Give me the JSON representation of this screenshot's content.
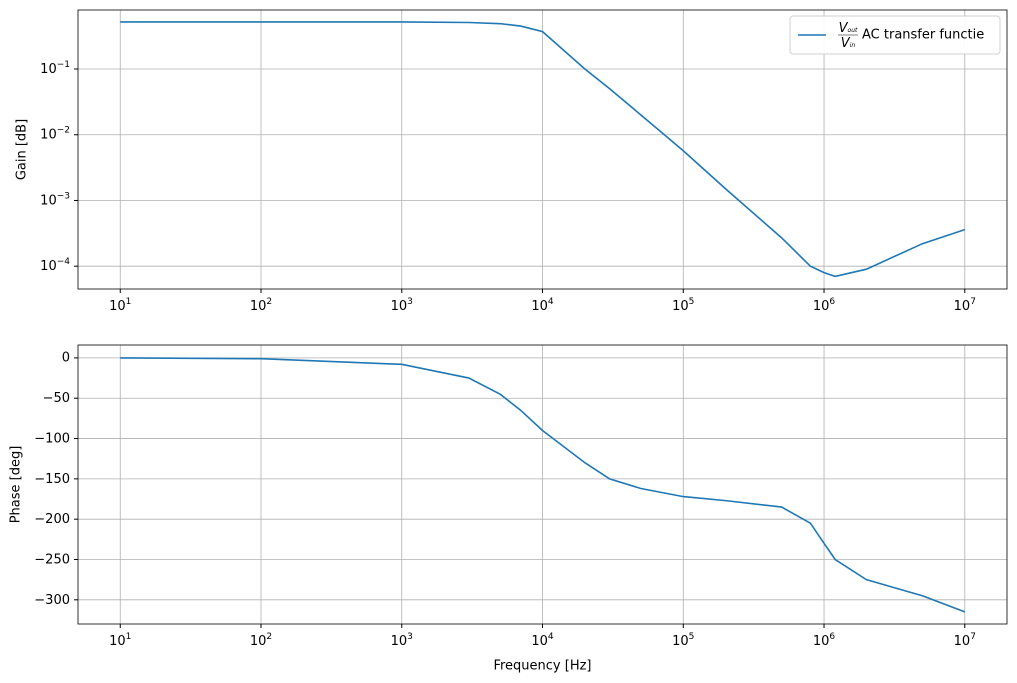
{
  "chart_data": [
    {
      "type": "line",
      "ylabel": "Gain [dB]",
      "xscale": "log",
      "yscale": "log",
      "grid": true,
      "legend": "upper right",
      "x": [
        10,
        100,
        1000,
        3000,
        5000,
        7000,
        10000,
        20000,
        30000,
        50000,
        100000,
        200000,
        500000,
        800000,
        1000000,
        1200000,
        2000000,
        5000000,
        10000000
      ],
      "series": [
        {
          "name": "AC transfer functie",
          "name_math": {
            "numerator": "V",
            "numerator_sub": "out",
            "denominator": "V",
            "denominator_sub": "in"
          },
          "color": "#1f77b4",
          "values": [
            0.52,
            0.52,
            0.52,
            0.51,
            0.49,
            0.45,
            0.37,
            0.1,
            0.05,
            0.02,
            0.0057,
            0.0015,
            0.00027,
            0.0001,
            8e-05,
            7e-05,
            9e-05,
            0.00022,
            0.00036
          ]
        }
      ],
      "xlim": [
        5.01,
        19950000
      ],
      "ylim": [
        4.5e-05,
        0.79
      ],
      "xticks": [
        {
          "value": 10,
          "label": "10",
          "exponent": "1"
        },
        {
          "value": 100,
          "label": "10",
          "exponent": "2"
        },
        {
          "value": 1000,
          "label": "10",
          "exponent": "3"
        },
        {
          "value": 10000,
          "label": "10",
          "exponent": "4"
        },
        {
          "value": 100000,
          "label": "10",
          "exponent": "5"
        },
        {
          "value": 1000000,
          "label": "10",
          "exponent": "6"
        },
        {
          "value": 10000000,
          "label": "10",
          "exponent": "7"
        }
      ],
      "yticks": [
        {
          "value": 0.0001,
          "label": "10",
          "exponent": "−4"
        },
        {
          "value": 0.001,
          "label": "10",
          "exponent": "−3"
        },
        {
          "value": 0.01,
          "label": "10",
          "exponent": "−2"
        },
        {
          "value": 0.1,
          "label": "10",
          "exponent": "−1"
        }
      ]
    },
    {
      "type": "line",
      "ylabel": "Phase [deg]",
      "xlabel": "Frequency [Hz]",
      "xscale": "log",
      "grid": true,
      "x": [
        10,
        100,
        1000,
        3000,
        5000,
        7000,
        10000,
        20000,
        30000,
        50000,
        100000,
        200000,
        500000,
        800000,
        1000000,
        1200000,
        2000000,
        5000000,
        10000000
      ],
      "series": [
        {
          "color": "#1f77b4",
          "values": [
            0,
            -1,
            -8,
            -25,
            -45,
            -65,
            -90,
            -130,
            -150,
            -162,
            -172,
            -177,
            -185,
            -205,
            -230,
            -250,
            -275,
            -295,
            -315
          ]
        }
      ],
      "xlim": [
        5.01,
        19950000
      ],
      "ylim": [
        -330,
        16
      ],
      "xticks": [
        {
          "value": 10,
          "label": "10",
          "exponent": "1"
        },
        {
          "value": 100,
          "label": "10",
          "exponent": "2"
        },
        {
          "value": 1000,
          "label": "10",
          "exponent": "3"
        },
        {
          "value": 10000,
          "label": "10",
          "exponent": "4"
        },
        {
          "value": 100000,
          "label": "10",
          "exponent": "5"
        },
        {
          "value": 1000000,
          "label": "10",
          "exponent": "6"
        },
        {
          "value": 10000000,
          "label": "10",
          "exponent": "7"
        }
      ],
      "yticks": [
        {
          "value": -300,
          "label": "−300"
        },
        {
          "value": -250,
          "label": "−250"
        },
        {
          "value": -200,
          "label": "−200"
        },
        {
          "value": -150,
          "label": "−150"
        },
        {
          "value": -100,
          "label": "−100"
        },
        {
          "value": -50,
          "label": "−50"
        },
        0
      ]
    }
  ]
}
